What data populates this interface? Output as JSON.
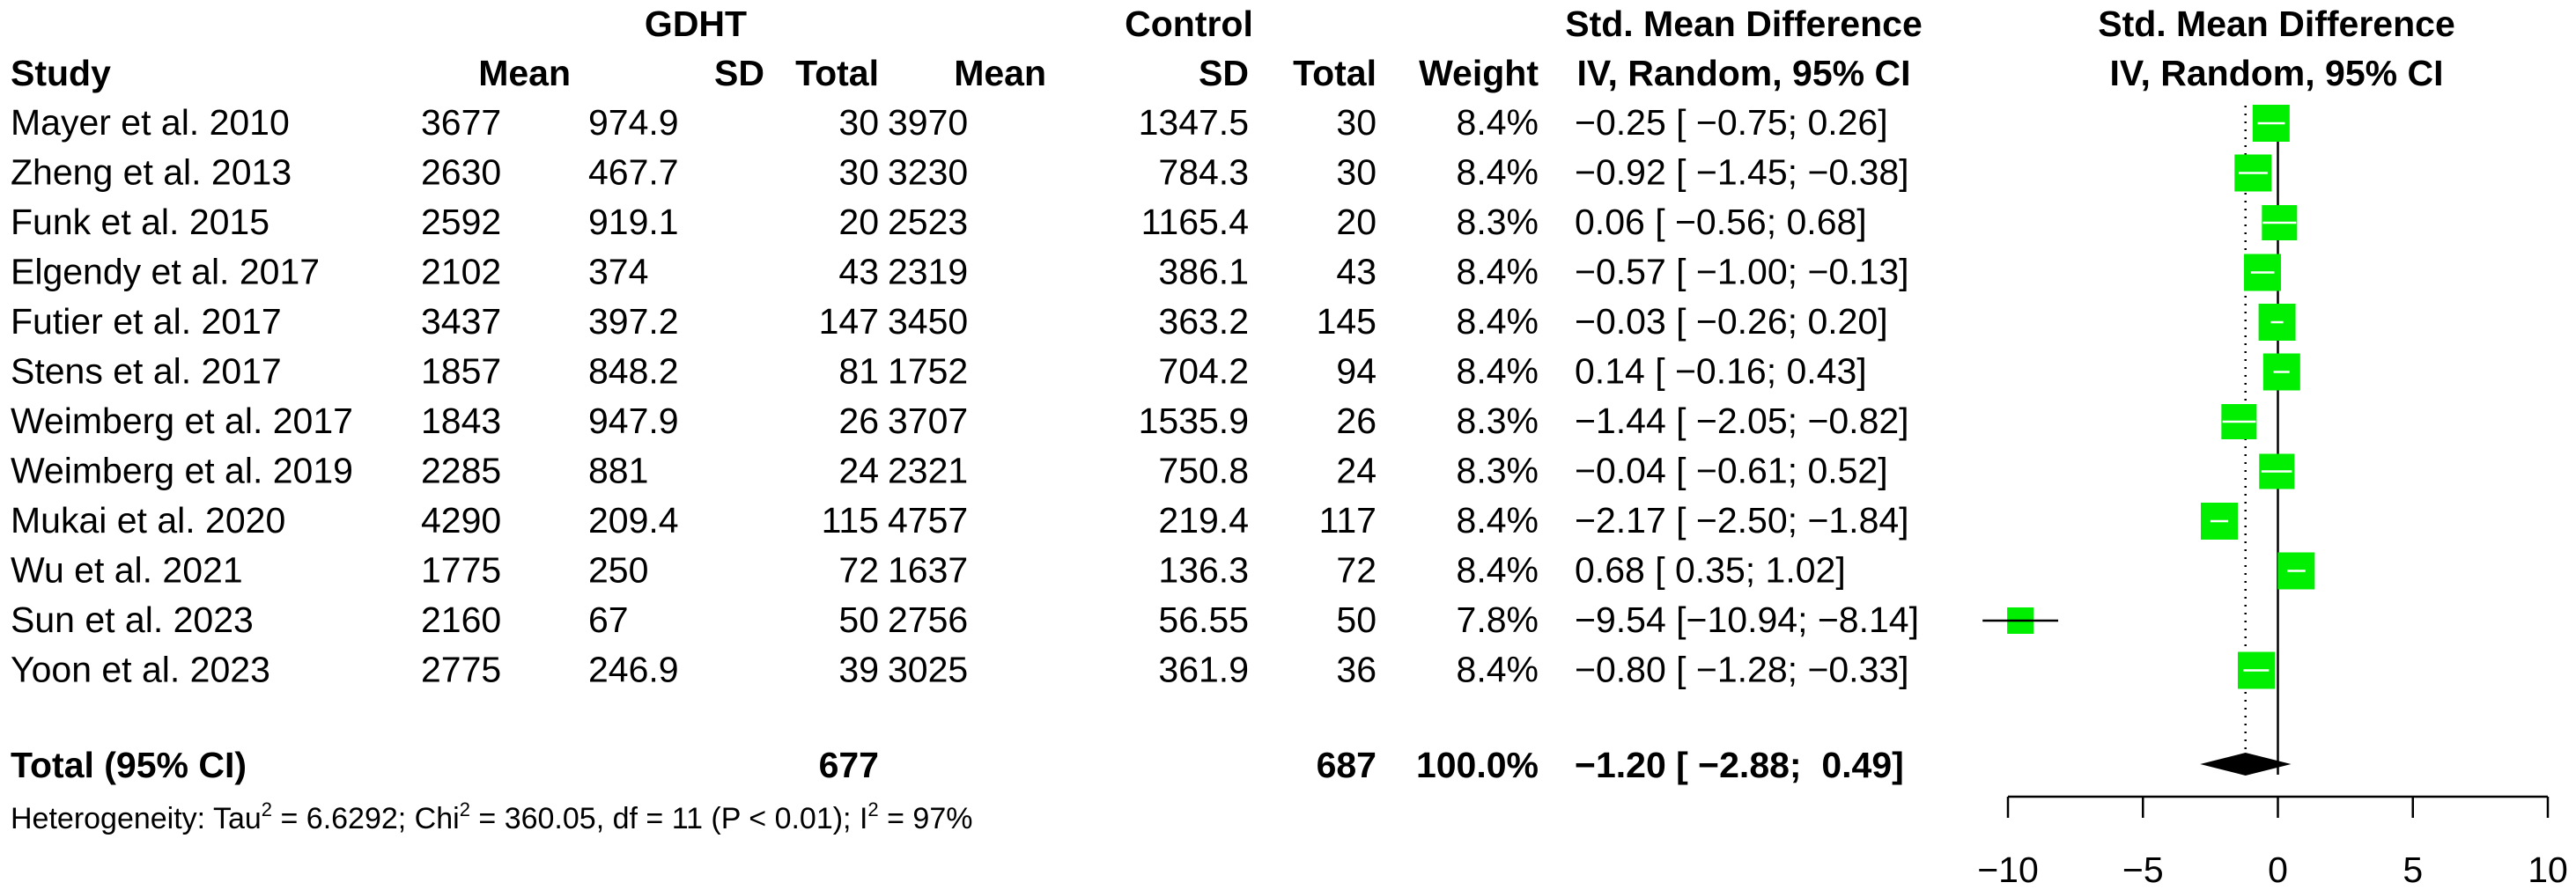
{
  "header": {
    "gdht": "GDHT",
    "control": "Control",
    "smd_top": "Std. Mean Difference",
    "smd_sub": "IV, Random, 95% CI",
    "plot_top": "Std. Mean Difference",
    "plot_sub": "IV, Random, 95% CI",
    "study": "Study",
    "mean": "Mean",
    "sd": "SD",
    "total": "Total",
    "weight": "Weight"
  },
  "rows": [
    {
      "study": "Mayer et al. 2010",
      "e_mean": "3677",
      "e_sd": "974.9",
      "e_total": "30",
      "c_mean": "3970",
      "c_sd": "1347.5",
      "c_total": "30",
      "weight": "8.4%",
      "ci_text": "−0.25 [ −0.75;  0.26]"
    },
    {
      "study": "Zheng et al. 2013",
      "e_mean": "2630",
      "e_sd": "467.7",
      "e_total": "30",
      "c_mean": "3230",
      "c_sd": "784.3",
      "c_total": "30",
      "weight": "8.4%",
      "ci_text": "−0.92 [ −1.45; −0.38]"
    },
    {
      "study": "Funk et al. 2015",
      "e_mean": "2592",
      "e_sd": "919.1",
      "e_total": "20",
      "c_mean": "2523",
      "c_sd": "1165.4",
      "c_total": "20",
      "weight": "8.3%",
      "ci_text": " 0.06 [ −0.56;  0.68]"
    },
    {
      "study": "Elgendy et al. 2017",
      "e_mean": "2102",
      "e_sd": "374",
      "e_total": "43",
      "c_mean": "2319",
      "c_sd": "386.1",
      "c_total": "43",
      "weight": "8.4%",
      "ci_text": "−0.57 [ −1.00; −0.13]"
    },
    {
      "study": "Futier et al. 2017",
      "e_mean": "3437",
      "e_sd": "397.2",
      "e_total": "147",
      "c_mean": "3450",
      "c_sd": "363.2",
      "c_total": "145",
      "weight": "8.4%",
      "ci_text": "−0.03 [ −0.26;  0.20]"
    },
    {
      "study": "Stens et al. 2017",
      "e_mean": "1857",
      "e_sd": "848.2",
      "e_total": "81",
      "c_mean": "1752",
      "c_sd": "704.2",
      "c_total": "94",
      "weight": "8.4%",
      "ci_text": " 0.14 [ −0.16;  0.43]"
    },
    {
      "study": "Weimberg et al. 2017",
      "e_mean": "1843",
      "e_sd": "947.9",
      "e_total": "26",
      "c_mean": "3707",
      "c_sd": "1535.9",
      "c_total": "26",
      "weight": "8.3%",
      "ci_text": "−1.44 [ −2.05; −0.82]"
    },
    {
      "study": "Weimberg et al. 2019",
      "e_mean": "2285",
      "e_sd": "881",
      "e_total": "24",
      "c_mean": "2321",
      "c_sd": "750.8",
      "c_total": "24",
      "weight": "8.3%",
      "ci_text": "−0.04 [ −0.61;  0.52]"
    },
    {
      "study": "Mukai et al. 2020",
      "e_mean": "4290",
      "e_sd": "209.4",
      "e_total": "115",
      "c_mean": "4757",
      "c_sd": "219.4",
      "c_total": "117",
      "weight": "8.4%",
      "ci_text": "−2.17 [ −2.50; −1.84]"
    },
    {
      "study": "Wu et al. 2021",
      "e_mean": "1775",
      "e_sd": "250",
      "e_total": "72",
      "c_mean": "1637",
      "c_sd": "136.3",
      "c_total": "72",
      "weight": "8.4%",
      "ci_text": " 0.68 [  0.35;  1.02]"
    },
    {
      "study": "Sun et al. 2023",
      "e_mean": "2160",
      "e_sd": "67",
      "e_total": "50",
      "c_mean": "2756",
      "c_sd": "56.55",
      "c_total": "50",
      "weight": "7.8%",
      "ci_text": "−9.54 [−10.94; −8.14]"
    },
    {
      "study": "Yoon et al. 2023",
      "e_mean": "2775",
      "e_sd": "246.9",
      "e_total": "39",
      "c_mean": "3025",
      "c_sd": "361.9",
      "c_total": "36",
      "weight": "8.4%",
      "ci_text": "−0.80 [ −1.28; −0.33]"
    }
  ],
  "total": {
    "label": "Total (95% CI)",
    "e_total": "677",
    "c_total": "687",
    "weight": "100.0%",
    "ci_text": "−1.20 [ −2.88;  0.49]"
  },
  "heterogeneity": {
    "p1": "Heterogeneity: Tau",
    "p2": " = 6.6292; Chi",
    "p3": " = 360.05, df = 11 (P < 0.01); I",
    "p4": " = 97%",
    "sup": "2"
  },
  "colors": {
    "box": "#00ee00",
    "diamond": "#000000",
    "ci_line": "#000000"
  },
  "chart_data": {
    "type": "forest",
    "xlim": [
      -10,
      10
    ],
    "ticks": [
      -10,
      -5,
      0,
      5,
      10
    ],
    "tick_labels": [
      "−10",
      "−5",
      "0",
      "5",
      "10"
    ],
    "null_line": 0,
    "studies": [
      {
        "name": "Mayer et al. 2010",
        "smd": -0.25,
        "lo": -0.75,
        "hi": 0.26,
        "weight": 8.4
      },
      {
        "name": "Zheng et al. 2013",
        "smd": -0.92,
        "lo": -1.45,
        "hi": -0.38,
        "weight": 8.4
      },
      {
        "name": "Funk et al. 2015",
        "smd": 0.06,
        "lo": -0.56,
        "hi": 0.68,
        "weight": 8.3
      },
      {
        "name": "Elgendy et al. 2017",
        "smd": -0.57,
        "lo": -1.0,
        "hi": -0.13,
        "weight": 8.4
      },
      {
        "name": "Futier et al. 2017",
        "smd": -0.03,
        "lo": -0.26,
        "hi": 0.2,
        "weight": 8.4
      },
      {
        "name": "Stens et al. 2017",
        "smd": 0.14,
        "lo": -0.16,
        "hi": 0.43,
        "weight": 8.4
      },
      {
        "name": "Weimberg et al. 2017",
        "smd": -1.44,
        "lo": -2.05,
        "hi": -0.82,
        "weight": 8.3
      },
      {
        "name": "Weimberg et al. 2019",
        "smd": -0.04,
        "lo": -0.61,
        "hi": 0.52,
        "weight": 8.3
      },
      {
        "name": "Mukai et al. 2020",
        "smd": -2.17,
        "lo": -2.5,
        "hi": -1.84,
        "weight": 8.4
      },
      {
        "name": "Wu et al. 2021",
        "smd": 0.68,
        "lo": 0.35,
        "hi": 1.02,
        "weight": 8.4
      },
      {
        "name": "Sun et al. 2023",
        "smd": -9.54,
        "lo": -10.94,
        "hi": -8.14,
        "weight": 7.8
      },
      {
        "name": "Yoon et al. 2023",
        "smd": -0.8,
        "lo": -1.28,
        "hi": -0.33,
        "weight": 8.4
      }
    ],
    "pooled": {
      "smd": -1.2,
      "lo": -2.88,
      "hi": 0.49
    }
  }
}
